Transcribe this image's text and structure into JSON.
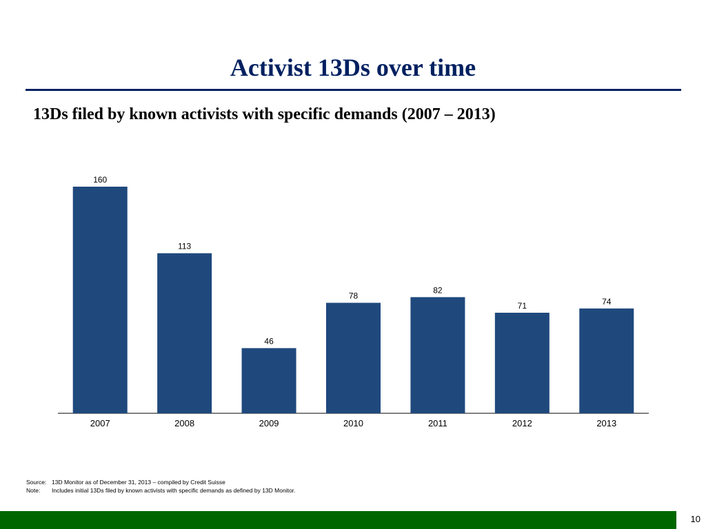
{
  "slide": {
    "title": "Activist 13Ds over time",
    "subtitle": "13Ds filed by known activists with specific demands (2007 – 2013)",
    "page_number": "10"
  },
  "notes": [
    {
      "key": "Source:",
      "text": "13D Monitor as of December 31, 2013 – compiled by Credit Suisse"
    },
    {
      "key": "Note:",
      "text": "Includes initial 13Ds filed by known activists with specific demands as defined by 13D Monitor."
    }
  ],
  "colors": {
    "title": "#002060",
    "bar": "#1F497D",
    "footer": "#006600"
  },
  "chart_data": {
    "type": "bar",
    "title": "",
    "xlabel": "",
    "ylabel": "",
    "categories": [
      "2007",
      "2008",
      "2009",
      "2010",
      "2011",
      "2012",
      "2013"
    ],
    "values": [
      160,
      113,
      46,
      78,
      82,
      71,
      74
    ],
    "data_labels": [
      "160",
      "113",
      "46",
      "78",
      "82",
      "71",
      "74"
    ],
    "ylim": [
      0,
      160
    ],
    "grid": false,
    "legend": "none"
  }
}
